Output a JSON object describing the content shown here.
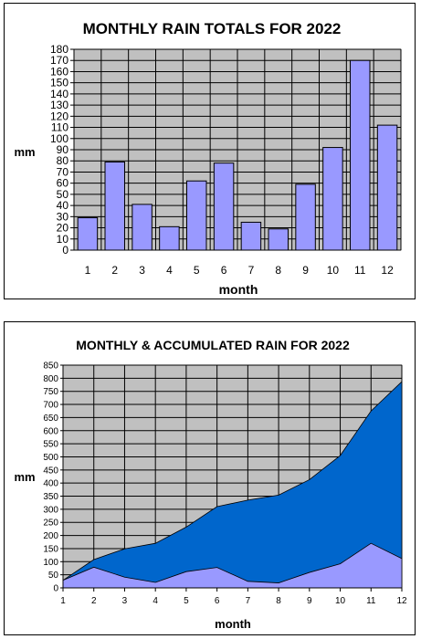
{
  "chart_data": [
    {
      "type": "bar",
      "title": "MONTHLY RAIN TOTALS FOR 2022",
      "xlabel": "month",
      "ylabel": "mm",
      "categories": [
        "1",
        "2",
        "3",
        "4",
        "5",
        "6",
        "7",
        "8",
        "9",
        "10",
        "11",
        "12"
      ],
      "values": [
        29,
        79,
        41,
        21,
        62,
        78,
        25,
        19,
        59,
        92,
        170,
        112
      ],
      "ylim": [
        0,
        180
      ],
      "ytick_step": 10,
      "grid": true,
      "colors": {
        "bar": "#9999ff",
        "plot_bg": "#c0c0c0"
      }
    },
    {
      "type": "area",
      "title": "MONTHLY & ACCUMULATED RAIN FOR 2022",
      "xlabel": "month",
      "ylabel": "mm",
      "x": [
        "1",
        "2",
        "3",
        "4",
        "5",
        "6",
        "7",
        "8",
        "9",
        "10",
        "11",
        "12"
      ],
      "series": [
        {
          "values": [
            29,
            108,
            149,
            170,
            232,
            310,
            335,
            354,
            413,
            505,
            675,
            787
          ]
        },
        {
          "values": [
            29,
            79,
            41,
            21,
            62,
            78,
            25,
            19,
            59,
            92,
            170,
            112
          ]
        }
      ],
      "ylim": [
        0,
        850
      ],
      "ytick_step": 50,
      "grid": true,
      "colors": {
        "accumulated": "#0066cc",
        "monthly": "#9999ff",
        "plot_bg": "#c0c0c0"
      }
    }
  ]
}
